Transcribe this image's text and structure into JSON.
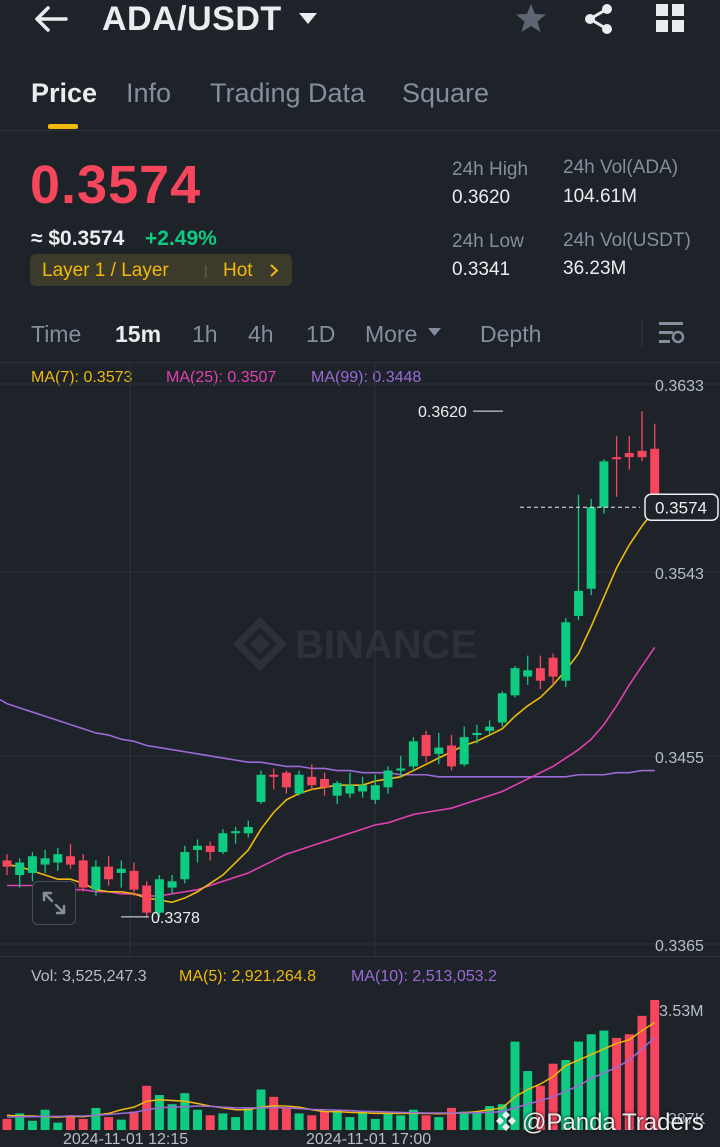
{
  "header": {
    "pair": "ADA/USDT"
  },
  "tabs": [
    {
      "label": "Price",
      "active": true
    },
    {
      "label": "Info"
    },
    {
      "label": "Trading Data"
    },
    {
      "label": "Square"
    }
  ],
  "ticker": {
    "last_price": "0.3574",
    "usd_value": "≈ $0.3574",
    "change": "+2.49%",
    "tag_label": "Layer 1 / Layer",
    "tag_hot": "Hot",
    "high_label": "24h High",
    "high_value": "0.3620",
    "low_label": "24h Low",
    "low_value": "0.3341",
    "vol_base_label": "24h Vol(ADA)",
    "vol_base_value": "104.61M",
    "vol_quote_label": "24h Vol(USDT)",
    "vol_quote_value": "36.23M"
  },
  "timeframes": [
    "Time",
    "15m",
    "1h",
    "4h",
    "1D",
    "More",
    "Depth"
  ],
  "active_timeframe": "15m",
  "chart": {
    "ma7_label": "MA(7): 0.3573",
    "ma25_label": "MA(25): 0.3507",
    "ma99_label": "MA(99): 0.3448",
    "price_ticks": [
      "0.3633",
      "0.3543",
      "0.3455",
      "0.3365"
    ],
    "current_price_tag": "0.3574",
    "high_marker": "0.3620",
    "low_marker": "0.3378",
    "watermark": "BINANCE"
  },
  "volume": {
    "vol_label": "Vol: 3,525,247.3",
    "ma5_label": "MA(5): 2,921,264.8",
    "ma10_label": "MA(10): 2,513,053.2",
    "ticks": [
      "3.53M",
      "387K"
    ],
    "time_labels": [
      "2024-11-01 12:15",
      "2024-11-01 17:00"
    ]
  },
  "watermark_text": "@Panda Traders",
  "colors": {
    "up": "#0ecb81",
    "down": "#f6465d",
    "ma7": "#f0b90b",
    "ma25": "#e040b0",
    "ma99": "#9b6ad6",
    "accent": "#f0b90b"
  },
  "chart_data": {
    "type": "candlestick",
    "timeframe": "15m",
    "ylim": [
      0.3365,
      0.3633
    ],
    "candles": [
      {
        "o": 0.3405,
        "h": 0.3408,
        "l": 0.3398,
        "c": 0.3402
      },
      {
        "o": 0.3398,
        "h": 0.3406,
        "l": 0.3392,
        "c": 0.3404
      },
      {
        "o": 0.3399,
        "h": 0.3409,
        "l": 0.3395,
        "c": 0.3407
      },
      {
        "o": 0.3403,
        "h": 0.341,
        "l": 0.3399,
        "c": 0.3406
      },
      {
        "o": 0.3404,
        "h": 0.3411,
        "l": 0.34,
        "c": 0.3408
      },
      {
        "o": 0.3407,
        "h": 0.3413,
        "l": 0.3401,
        "c": 0.3403
      },
      {
        "o": 0.3405,
        "h": 0.3408,
        "l": 0.339,
        "c": 0.3392
      },
      {
        "o": 0.3391,
        "h": 0.3405,
        "l": 0.3388,
        "c": 0.3402
      },
      {
        "o": 0.3402,
        "h": 0.3407,
        "l": 0.3393,
        "c": 0.3396
      },
      {
        "o": 0.3399,
        "h": 0.3405,
        "l": 0.3392,
        "c": 0.3401
      },
      {
        "o": 0.34,
        "h": 0.3404,
        "l": 0.3388,
        "c": 0.3391
      },
      {
        "o": 0.3393,
        "h": 0.3395,
        "l": 0.3378,
        "c": 0.338
      },
      {
        "o": 0.338,
        "h": 0.3398,
        "l": 0.3378,
        "c": 0.3396
      },
      {
        "o": 0.3392,
        "h": 0.3398,
        "l": 0.3389,
        "c": 0.3395
      },
      {
        "o": 0.3396,
        "h": 0.3412,
        "l": 0.3394,
        "c": 0.3409
      },
      {
        "o": 0.341,
        "h": 0.3415,
        "l": 0.3404,
        "c": 0.3412
      },
      {
        "o": 0.3412,
        "h": 0.3414,
        "l": 0.3405,
        "c": 0.3409
      },
      {
        "o": 0.3409,
        "h": 0.342,
        "l": 0.3408,
        "c": 0.3418
      },
      {
        "o": 0.3418,
        "h": 0.3421,
        "l": 0.3413,
        "c": 0.3419
      },
      {
        "o": 0.3418,
        "h": 0.3424,
        "l": 0.3416,
        "c": 0.3421
      },
      {
        "o": 0.3433,
        "h": 0.3448,
        "l": 0.3432,
        "c": 0.3446
      },
      {
        "o": 0.3446,
        "h": 0.3449,
        "l": 0.3439,
        "c": 0.3445
      },
      {
        "o": 0.3447,
        "h": 0.3448,
        "l": 0.3437,
        "c": 0.344
      },
      {
        "o": 0.3437,
        "h": 0.3448,
        "l": 0.3436,
        "c": 0.3446
      },
      {
        "o": 0.3445,
        "h": 0.3451,
        "l": 0.3439,
        "c": 0.3441
      },
      {
        "o": 0.3444,
        "h": 0.3447,
        "l": 0.3436,
        "c": 0.344
      },
      {
        "o": 0.3436,
        "h": 0.3443,
        "l": 0.3432,
        "c": 0.3442
      },
      {
        "o": 0.3437,
        "h": 0.3447,
        "l": 0.3435,
        "c": 0.3441
      },
      {
        "o": 0.3438,
        "h": 0.3445,
        "l": 0.3435,
        "c": 0.3441
      },
      {
        "o": 0.3434,
        "h": 0.3446,
        "l": 0.3432,
        "c": 0.3441
      },
      {
        "o": 0.344,
        "h": 0.345,
        "l": 0.3437,
        "c": 0.3448
      },
      {
        "o": 0.3448,
        "h": 0.3455,
        "l": 0.3445,
        "c": 0.3449
      },
      {
        "o": 0.345,
        "h": 0.3464,
        "l": 0.3448,
        "c": 0.3462
      },
      {
        "o": 0.3465,
        "h": 0.3467,
        "l": 0.3452,
        "c": 0.3455
      },
      {
        "o": 0.3456,
        "h": 0.3466,
        "l": 0.3451,
        "c": 0.3459
      },
      {
        "o": 0.346,
        "h": 0.3465,
        "l": 0.3448,
        "c": 0.345
      },
      {
        "o": 0.3451,
        "h": 0.3469,
        "l": 0.345,
        "c": 0.3464
      },
      {
        "o": 0.3465,
        "h": 0.347,
        "l": 0.3461,
        "c": 0.3466
      },
      {
        "o": 0.3467,
        "h": 0.3472,
        "l": 0.3465,
        "c": 0.3469
      },
      {
        "o": 0.3471,
        "h": 0.3486,
        "l": 0.3469,
        "c": 0.3485
      },
      {
        "o": 0.3484,
        "h": 0.3498,
        "l": 0.3483,
        "c": 0.3497
      },
      {
        "o": 0.3493,
        "h": 0.3503,
        "l": 0.3489,
        "c": 0.3496
      },
      {
        "o": 0.3497,
        "h": 0.3503,
        "l": 0.3487,
        "c": 0.3491
      },
      {
        "o": 0.3502,
        "h": 0.3504,
        "l": 0.3489,
        "c": 0.3493
      },
      {
        "o": 0.3491,
        "h": 0.3521,
        "l": 0.3488,
        "c": 0.3519
      },
      {
        "o": 0.3522,
        "h": 0.358,
        "l": 0.352,
        "c": 0.3534
      },
      {
        "o": 0.3535,
        "h": 0.3578,
        "l": 0.3532,
        "c": 0.3574
      },
      {
        "o": 0.3574,
        "h": 0.3597,
        "l": 0.3571,
        "c": 0.3596
      },
      {
        "o": 0.3598,
        "h": 0.3608,
        "l": 0.3579,
        "c": 0.3597
      },
      {
        "o": 0.36,
        "h": 0.3608,
        "l": 0.3592,
        "c": 0.3598
      },
      {
        "o": 0.3601,
        "h": 0.362,
        "l": 0.3596,
        "c": 0.3598
      },
      {
        "o": 0.3602,
        "h": 0.3614,
        "l": 0.3575,
        "c": 0.3574
      }
    ],
    "ma7": [
      0.3403,
      0.3402,
      0.34,
      0.3398,
      0.3396,
      0.3396,
      0.3394,
      0.3391,
      0.339,
      0.339,
      0.3389,
      0.3387,
      0.3386,
      0.3385,
      0.3387,
      0.339,
      0.3394,
      0.3398,
      0.3404,
      0.341,
      0.342,
      0.3428,
      0.3434,
      0.3437,
      0.3439,
      0.344,
      0.3441,
      0.3441,
      0.3441,
      0.3443,
      0.3444,
      0.3445,
      0.3448,
      0.3451,
      0.3454,
      0.3457,
      0.346,
      0.3462,
      0.3465,
      0.3468,
      0.3474,
      0.3479,
      0.3483,
      0.3489,
      0.3496,
      0.3504,
      0.3517,
      0.3531,
      0.3545,
      0.3556,
      0.3565,
      0.3573
    ],
    "ma25": [
      0.3393,
      0.3393,
      0.3393,
      0.3392,
      0.3392,
      0.3391,
      0.3391,
      0.339,
      0.339,
      0.3389,
      0.3389,
      0.3388,
      0.3388,
      0.3389,
      0.339,
      0.3391,
      0.3393,
      0.3395,
      0.3397,
      0.3399,
      0.3402,
      0.3405,
      0.3408,
      0.341,
      0.3412,
      0.3414,
      0.3416,
      0.3418,
      0.342,
      0.3422,
      0.3423,
      0.3425,
      0.3427,
      0.3428,
      0.3429,
      0.343,
      0.3432,
      0.3434,
      0.3436,
      0.3438,
      0.3441,
      0.3444,
      0.3447,
      0.345,
      0.3454,
      0.3458,
      0.3463,
      0.347,
      0.3479,
      0.3489,
      0.3498,
      0.3507
    ],
    "ma99": [
      0.348,
      0.3478,
      0.3476,
      0.3474,
      0.3472,
      0.347,
      0.3468,
      0.3466,
      0.3465,
      0.3463,
      0.3462,
      0.346,
      0.3459,
      0.3458,
      0.3457,
      0.3456,
      0.3455,
      0.3454,
      0.3453,
      0.3452,
      0.3452,
      0.3451,
      0.345,
      0.345,
      0.3449,
      0.3449,
      0.3448,
      0.3448,
      0.3447,
      0.3447,
      0.3447,
      0.3446,
      0.3446,
      0.3446,
      0.3445,
      0.3445,
      0.3445,
      0.3445,
      0.3445,
      0.3445,
      0.3445,
      0.3445,
      0.3445,
      0.3445,
      0.3445,
      0.3446,
      0.3446,
      0.3446,
      0.3447,
      0.3447,
      0.3448,
      0.3448
    ],
    "volume_ylim": [
      0,
      3530000
    ],
    "volumes": [
      0.3,
      0.45,
      0.25,
      0.55,
      0.2,
      0.4,
      0.3,
      0.6,
      0.35,
      0.28,
      0.5,
      1.2,
      0.95,
      0.7,
      1.0,
      0.55,
      0.4,
      0.45,
      0.35,
      0.6,
      1.1,
      0.9,
      0.6,
      0.45,
      0.4,
      0.5,
      0.55,
      0.35,
      0.5,
      0.3,
      0.45,
      0.4,
      0.55,
      0.4,
      0.35,
      0.6,
      0.5,
      0.45,
      0.65,
      0.7,
      2.4,
      1.6,
      1.2,
      1.8,
      1.9,
      2.4,
      2.6,
      2.7,
      2.5,
      2.6,
      3.1,
      3.53
    ],
    "volume_ma5": [
      0.4,
      0.38,
      0.38,
      0.36,
      0.35,
      0.37,
      0.36,
      0.4,
      0.45,
      0.55,
      0.62,
      0.78,
      0.82,
      0.8,
      0.78,
      0.72,
      0.65,
      0.6,
      0.55,
      0.55,
      0.62,
      0.66,
      0.65,
      0.62,
      0.55,
      0.5,
      0.5,
      0.48,
      0.47,
      0.45,
      0.45,
      0.45,
      0.45,
      0.45,
      0.44,
      0.45,
      0.47,
      0.5,
      0.55,
      0.6,
      0.9,
      1.1,
      1.25,
      1.45,
      1.75,
      1.9,
      2.05,
      2.2,
      2.35,
      2.45,
      2.7,
      2.92
    ],
    "volume_ma10": [
      0.35,
      0.36,
      0.36,
      0.37,
      0.37,
      0.38,
      0.38,
      0.4,
      0.42,
      0.45,
      0.48,
      0.55,
      0.6,
      0.62,
      0.63,
      0.65,
      0.64,
      0.62,
      0.6,
      0.6,
      0.6,
      0.61,
      0.6,
      0.58,
      0.56,
      0.55,
      0.54,
      0.53,
      0.51,
      0.5,
      0.49,
      0.48,
      0.47,
      0.46,
      0.46,
      0.46,
      0.46,
      0.47,
      0.48,
      0.5,
      0.6,
      0.7,
      0.8,
      0.9,
      1.05,
      1.2,
      1.4,
      1.55,
      1.7,
      1.9,
      2.2,
      2.51
    ]
  }
}
